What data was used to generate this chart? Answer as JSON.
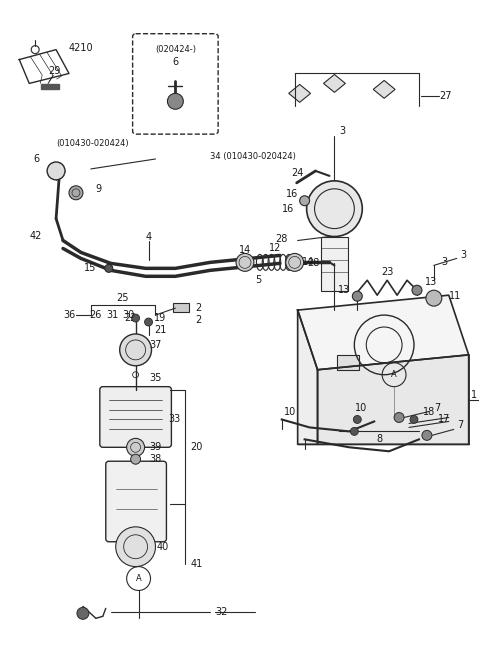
{
  "background_color": "#ffffff",
  "fig_width": 4.8,
  "fig_height": 6.56,
  "dpi": 100,
  "line_color": "#2a2a2a",
  "text_color": "#1a1a1a"
}
